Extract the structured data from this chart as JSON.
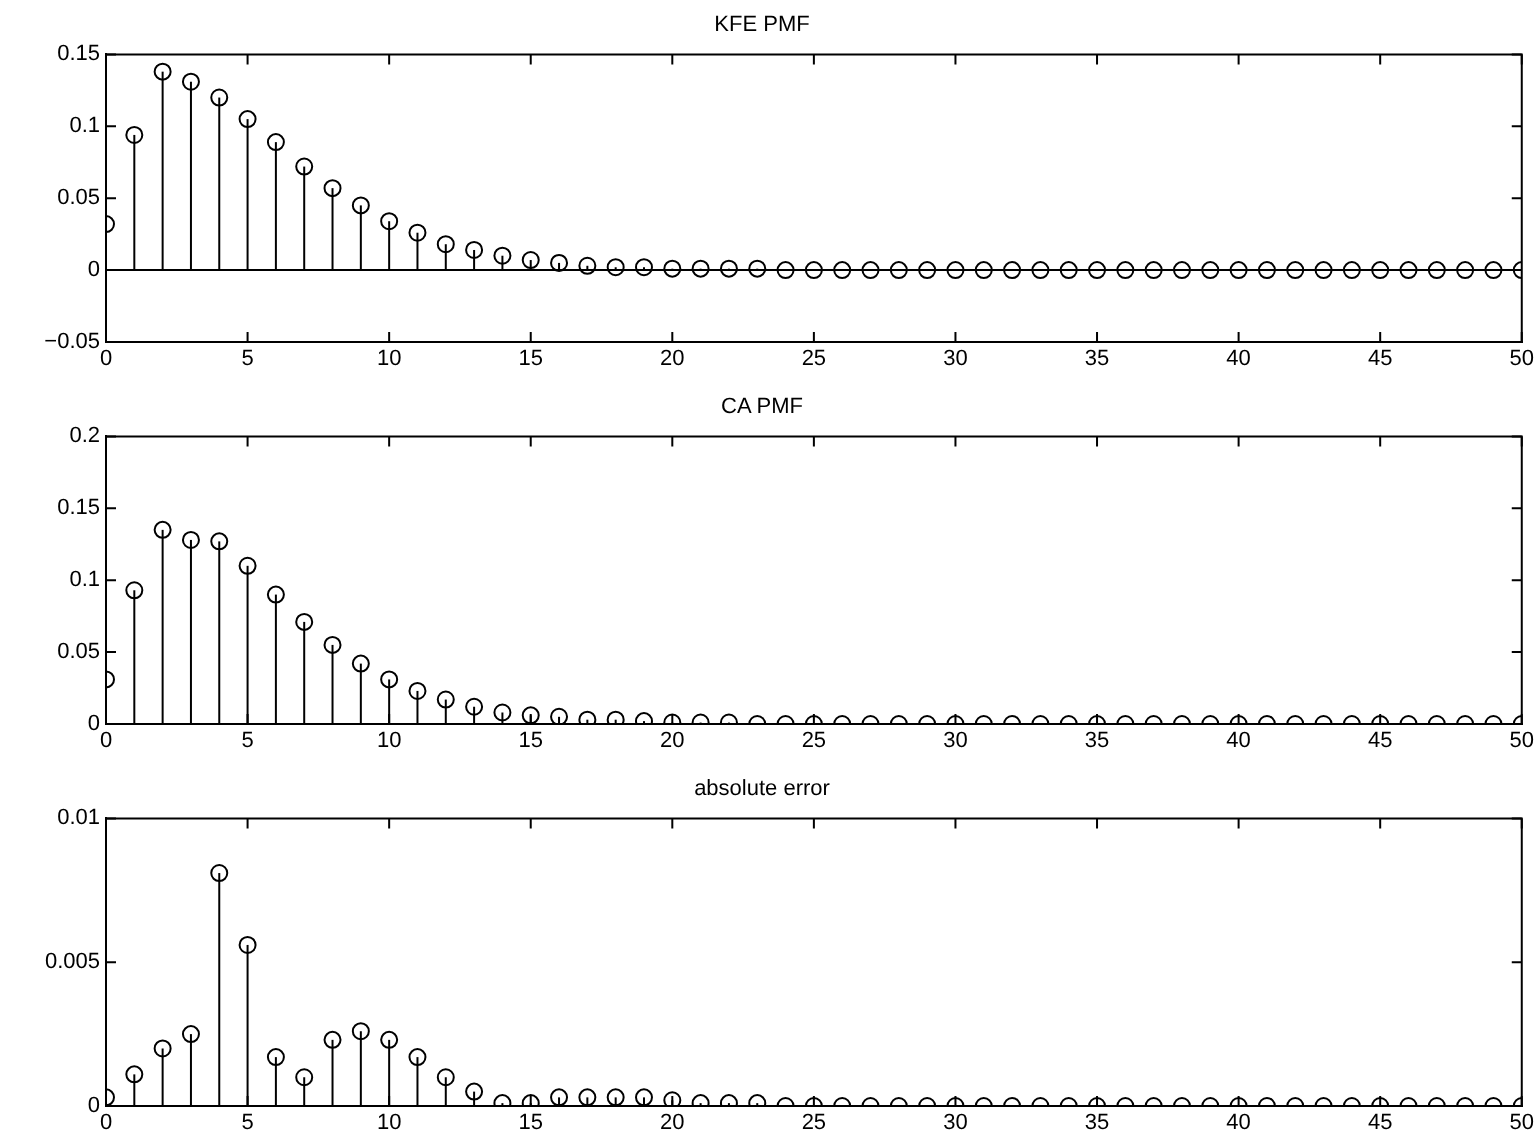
{
  "chart_data": [
    {
      "type": "lollipop",
      "title": "KFE PMF",
      "x": [
        0,
        1,
        2,
        3,
        4,
        5,
        6,
        7,
        8,
        9,
        10,
        11,
        12,
        13,
        14,
        15,
        16,
        17,
        18,
        19,
        20,
        21,
        22,
        23,
        24,
        25,
        26,
        27,
        28,
        29,
        30,
        31,
        32,
        33,
        34,
        35,
        36,
        37,
        38,
        39,
        40,
        41,
        42,
        43,
        44,
        45,
        46,
        47,
        48,
        49,
        50
      ],
      "values": [
        0.032,
        0.094,
        0.138,
        0.131,
        0.12,
        0.105,
        0.089,
        0.072,
        0.057,
        0.045,
        0.034,
        0.026,
        0.018,
        0.014,
        0.01,
        0.007,
        0.005,
        0.003,
        0.002,
        0.002,
        0.001,
        0.001,
        0.001,
        0.001,
        0,
        0,
        0,
        0,
        0,
        0,
        0,
        0,
        0,
        0,
        0,
        0,
        0,
        0,
        0,
        0,
        0,
        0,
        0,
        0,
        0,
        0,
        0,
        0,
        0,
        0,
        0
      ],
      "color": "#000000",
      "marker": "circle",
      "legend": false,
      "grid": false,
      "xlim": [
        0,
        50
      ],
      "xticks": [
        0,
        5,
        10,
        15,
        20,
        25,
        30,
        35,
        40,
        45,
        50
      ],
      "ref_lines": [
        {
          "axis": "y",
          "value": 0
        }
      ],
      "ylim": [
        -0.05,
        0.15
      ],
      "yticks": [
        {
          "value": -0.05,
          "label": "−0.05"
        },
        0,
        0.05,
        0.1,
        0.15
      ]
    },
    {
      "type": "lollipop",
      "title": "CA PMF",
      "x": [
        0,
        1,
        2,
        3,
        4,
        5,
        6,
        7,
        8,
        9,
        10,
        11,
        12,
        13,
        14,
        15,
        16,
        17,
        18,
        19,
        20,
        21,
        22,
        23,
        24,
        25,
        26,
        27,
        28,
        29,
        30,
        31,
        32,
        33,
        34,
        35,
        36,
        37,
        38,
        39,
        40,
        41,
        42,
        43,
        44,
        45,
        46,
        47,
        48,
        49,
        50
      ],
      "values": [
        0.031,
        0.093,
        0.135,
        0.128,
        0.127,
        0.11,
        0.09,
        0.071,
        0.055,
        0.042,
        0.031,
        0.023,
        0.017,
        0.012,
        0.008,
        0.006,
        0.005,
        0.003,
        0.003,
        0.002,
        0.001,
        0.001,
        0.001,
        0,
        0,
        0,
        0,
        0,
        0,
        0,
        0,
        0,
        0,
        0,
        0,
        0,
        0,
        0,
        0,
        0,
        0,
        0,
        0,
        0,
        0,
        0,
        0,
        0,
        0,
        0,
        0
      ],
      "color": "#000000",
      "marker": "circle",
      "legend": false,
      "grid": false,
      "xlim": [
        0,
        50
      ],
      "xticks": [
        0,
        5,
        10,
        15,
        20,
        25,
        30,
        35,
        40,
        45,
        50
      ],
      "ylim": [
        0,
        0.2
      ],
      "yticks": [
        0,
        0.05,
        0.1,
        0.15,
        0.2
      ]
    },
    {
      "type": "lollipop",
      "title": "absolute error",
      "x": [
        0,
        1,
        2,
        3,
        4,
        5,
        6,
        7,
        8,
        9,
        10,
        11,
        12,
        13,
        14,
        15,
        16,
        17,
        18,
        19,
        20,
        21,
        22,
        23,
        24,
        25,
        26,
        27,
        28,
        29,
        30,
        31,
        32,
        33,
        34,
        35,
        36,
        37,
        38,
        39,
        40,
        41,
        42,
        43,
        44,
        45,
        46,
        47,
        48,
        49,
        50
      ],
      "values": [
        0.0003,
        0.0011,
        0.002,
        0.0025,
        0.0081,
        0.0056,
        0.0017,
        0.001,
        0.0023,
        0.0026,
        0.0023,
        0.0017,
        0.001,
        0.0005,
        0.0001,
        0.0001,
        0.0003,
        0.0003,
        0.0003,
        0.0003,
        0.0002,
        0.0001,
        0.0001,
        0.0001,
        0,
        0,
        0,
        0,
        0,
        0,
        0,
        0,
        0,
        0,
        0,
        0,
        0,
        0,
        0,
        0,
        0,
        0,
        0,
        0,
        0,
        0,
        0,
        0,
        0,
        0,
        0
      ],
      "color": "#000000",
      "marker": "circle",
      "legend": false,
      "grid": false,
      "xlim": [
        0,
        50
      ],
      "xticks": [
        0,
        5,
        10,
        15,
        20,
        25,
        30,
        35,
        40,
        45,
        50
      ],
      "ylim": [
        0,
        0.01
      ],
      "yticks": [
        0,
        0.005,
        0.01
      ]
    }
  ]
}
